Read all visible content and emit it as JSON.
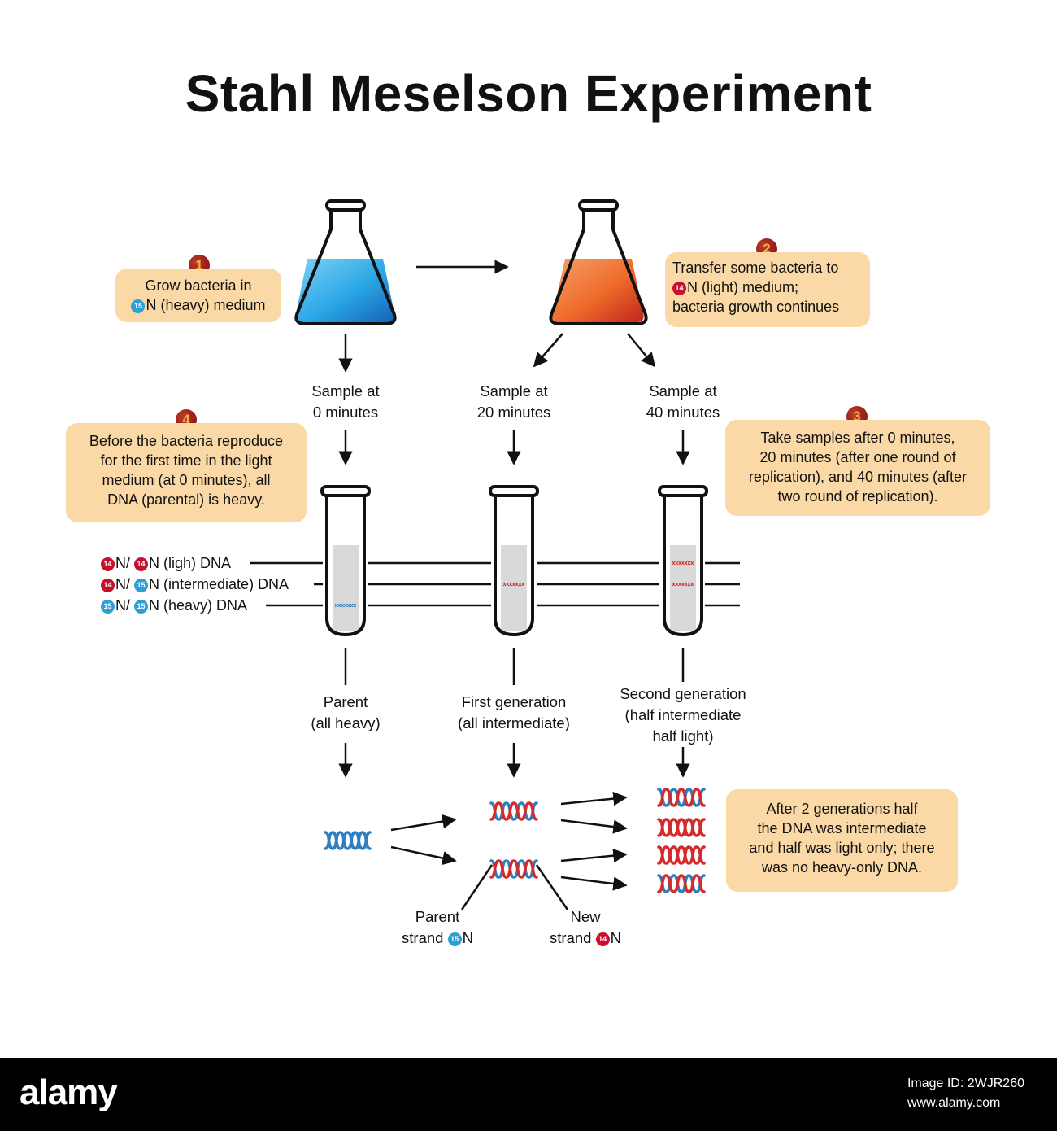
{
  "title": "Stahl Meselson Experiment",
  "steps": {
    "step1": {
      "number": "1",
      "line1": "Grow bacteria in",
      "line2_badge": "15",
      "line2": "N (heavy) medium"
    },
    "step2": {
      "number": "2",
      "line1": "Transfer some bacteria to",
      "line2_badge": "14",
      "line2": "N (light) medium;",
      "line3": "bacteria growth continues"
    },
    "step3": {
      "number": "3",
      "line1": "Take samples after 0 minutes,",
      "line2": "20 minutes (after one round of",
      "line3": "replication), and 40 minutes (after",
      "line4": "two round of replication)."
    },
    "step4": {
      "number": "4",
      "line1": "Before the bacteria reproduce",
      "line2": "for the first time in the light",
      "line3": "medium (at 0 minutes), all",
      "line4": "DNA (parental) is heavy."
    }
  },
  "samples": [
    {
      "line1": "Sample at",
      "line2": "0 minutes"
    },
    {
      "line1": "Sample at",
      "line2": "20 minutes"
    },
    {
      "line1": "Sample at",
      "line2": "40 minutes"
    }
  ],
  "dna_levels": {
    "light": {
      "badge_a": "14",
      "sep": "N/",
      "badge_b": "14",
      "text": "N (ligh) DNA"
    },
    "intermediate": {
      "badge_a": "14",
      "sep": "N/",
      "badge_b": "15",
      "text": "N (intermediate) DNA"
    },
    "heavy": {
      "badge_a": "15",
      "sep": "N/",
      "badge_b": "15",
      "text": "N (heavy) DNA"
    }
  },
  "generations": [
    {
      "line1": "Parent",
      "line2": "(all heavy)"
    },
    {
      "line1": "First generation",
      "line2": "(all intermediate)"
    },
    {
      "line1": "Second generation",
      "line2": "(half intermediate",
      "line3": "half light)"
    }
  ],
  "strand_labels": {
    "parent": {
      "line1": "Parent",
      "line2": "strand",
      "badge": "15",
      "suffix": "N"
    },
    "new": {
      "line1": "New",
      "line2": "strand",
      "badge": "14",
      "suffix": "N"
    }
  },
  "conclusion": {
    "line1": "After 2 generations half",
    "line2": "the DNA was intermediate",
    "line3": "and half was light only; there",
    "line4": "was no heavy-only DNA."
  },
  "footer": {
    "logo": "alamy",
    "image_id_label": "Image ID: 2WJR260",
    "site": "www.alamy.com"
  },
  "colors": {
    "box_fill": "#fbd9a6",
    "heavy_blue": "#2e7fc1",
    "light_red": "#d42a2a",
    "flask_blue": "#33aee8",
    "flask_orange": "#ee6a2a"
  }
}
